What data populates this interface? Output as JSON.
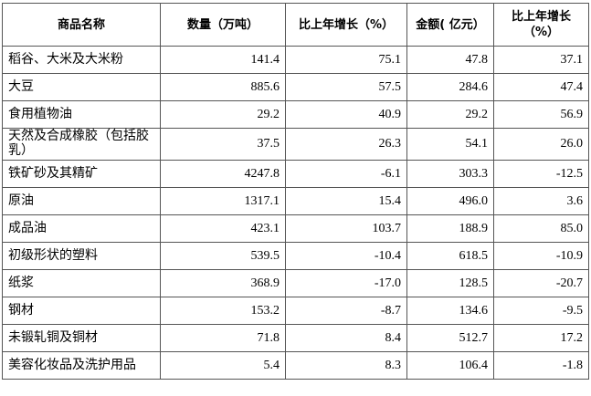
{
  "table": {
    "header": [
      "商品名称",
      "数量（万吨）",
      "比上年增长（%）",
      "金额( 亿元）",
      "比上年增长（%）"
    ],
    "rows": [
      [
        "稻谷、大米及大米粉",
        "141.4",
        "75.1",
        "47.8",
        "37.1"
      ],
      [
        "大豆",
        "885.6",
        "57.5",
        "284.6",
        "47.4"
      ],
      [
        "食用植物油",
        "29.2",
        "40.9",
        "29.2",
        "56.9"
      ],
      [
        "天然及合成橡胶（包括胶乳）",
        "37.5",
        "26.3",
        "54.1",
        "26.0"
      ],
      [
        "铁矿砂及其精矿",
        "4247.8",
        "-6.1",
        "303.3",
        "-12.5"
      ],
      [
        "原油",
        "1317.1",
        "15.4",
        "496.0",
        "3.6"
      ],
      [
        "成品油",
        "423.1",
        "103.7",
        "188.9",
        "85.0"
      ],
      [
        "初级形状的塑料",
        "539.5",
        "-10.4",
        "618.5",
        "-10.9"
      ],
      [
        "纸浆",
        "368.9",
        "-17.0",
        "128.5",
        "-20.7"
      ],
      [
        "钢材",
        "153.2",
        "-8.7",
        "134.6",
        "-9.5"
      ],
      [
        "未锻轧铜及铜材",
        "71.8",
        "8.4",
        "512.7",
        "17.2"
      ],
      [
        "美容化妆品及洗护用品",
        "5.4",
        "8.3",
        "106.4",
        "-1.8"
      ]
    ]
  }
}
